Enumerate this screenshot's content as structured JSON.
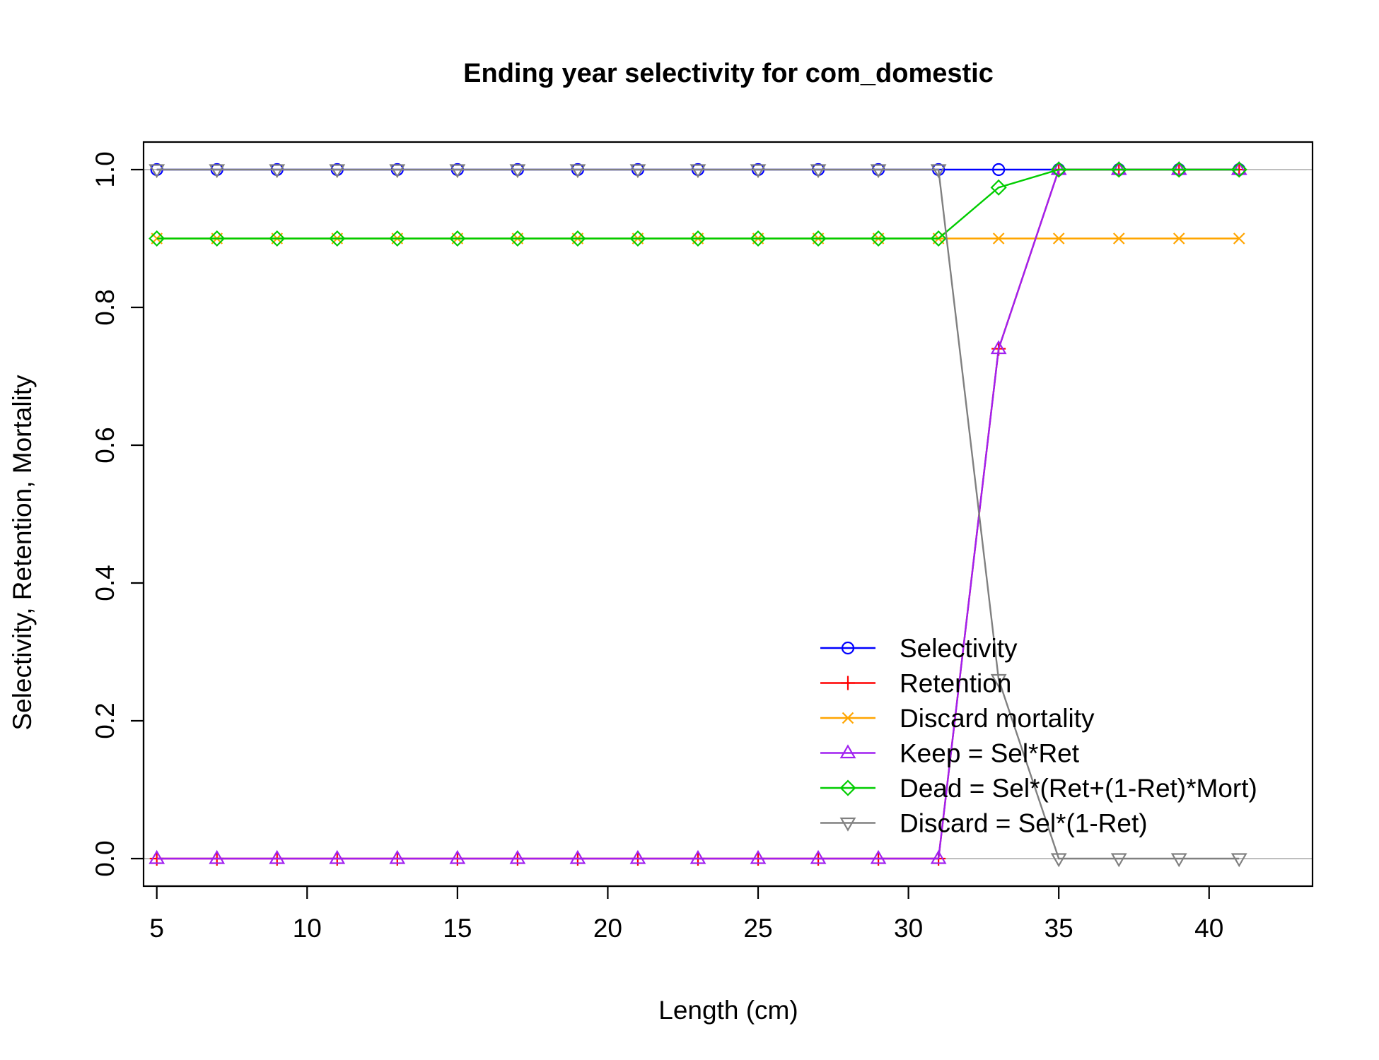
{
  "chart_data": {
    "type": "line",
    "title": "Ending year selectivity for com_domestic",
    "xlabel": "Length (cm)",
    "ylabel": "Selectivity, Retention, Mortality",
    "xlim": [
      4.56,
      43.44
    ],
    "ylim": [
      -0.04,
      1.04
    ],
    "x_ticks": [
      5,
      10,
      15,
      20,
      25,
      30,
      35,
      40
    ],
    "x_tick_labels": [
      "5",
      "10",
      "15",
      "20",
      "25",
      "30",
      "35",
      "40"
    ],
    "y_ticks": [
      0.0,
      0.2,
      0.4,
      0.6,
      0.8,
      1.0
    ],
    "y_tick_labels": [
      "0.0",
      "0.2",
      "0.4",
      "0.6",
      "0.8",
      "1.0"
    ],
    "reference_lines": [
      0,
      1
    ],
    "reference_line_color": "#bebebe",
    "legend_position": "bottom-right",
    "x": [
      5,
      7,
      9,
      11,
      13,
      15,
      17,
      19,
      21,
      23,
      25,
      27,
      29,
      31,
      33,
      35,
      37,
      39,
      41
    ],
    "series": [
      {
        "name": "Selectivity",
        "color": "#0000ff",
        "marker": "circle",
        "values": [
          1,
          1,
          1,
          1,
          1,
          1,
          1,
          1,
          1,
          1,
          1,
          1,
          1,
          1,
          1,
          1,
          1,
          1,
          1
        ]
      },
      {
        "name": "Retention",
        "color": "#ff0000",
        "marker": "plus",
        "values": [
          0,
          0,
          0,
          0,
          0,
          0,
          0,
          0,
          0,
          0,
          0,
          0,
          0,
          0,
          0.74,
          1,
          1,
          1,
          1
        ]
      },
      {
        "name": "Discard mortality",
        "color": "#ffa500",
        "marker": "cross",
        "values": [
          0.9,
          0.9,
          0.9,
          0.9,
          0.9,
          0.9,
          0.9,
          0.9,
          0.9,
          0.9,
          0.9,
          0.9,
          0.9,
          0.9,
          0.9,
          0.9,
          0.9,
          0.9,
          0.9
        ]
      },
      {
        "name": "Keep = Sel*Ret",
        "color": "#a020f0",
        "marker": "triangle-up",
        "values": [
          0,
          0,
          0,
          0,
          0,
          0,
          0,
          0,
          0,
          0,
          0,
          0,
          0,
          0,
          0.74,
          1,
          1,
          1,
          1
        ]
      },
      {
        "name": "Dead = Sel*(Ret+(1-Ret)*Mort)",
        "color": "#00cd00",
        "marker": "diamond",
        "values": [
          0.9,
          0.9,
          0.9,
          0.9,
          0.9,
          0.9,
          0.9,
          0.9,
          0.9,
          0.9,
          0.9,
          0.9,
          0.9,
          0.9,
          0.974,
          1,
          1,
          1,
          1
        ]
      },
      {
        "name": "Discard = Sel*(1-Ret)",
        "color": "#808080",
        "marker": "triangle-down",
        "values": [
          1,
          1,
          1,
          1,
          1,
          1,
          1,
          1,
          1,
          1,
          1,
          1,
          1,
          1,
          0.26,
          0,
          0,
          0,
          0
        ]
      }
    ]
  }
}
